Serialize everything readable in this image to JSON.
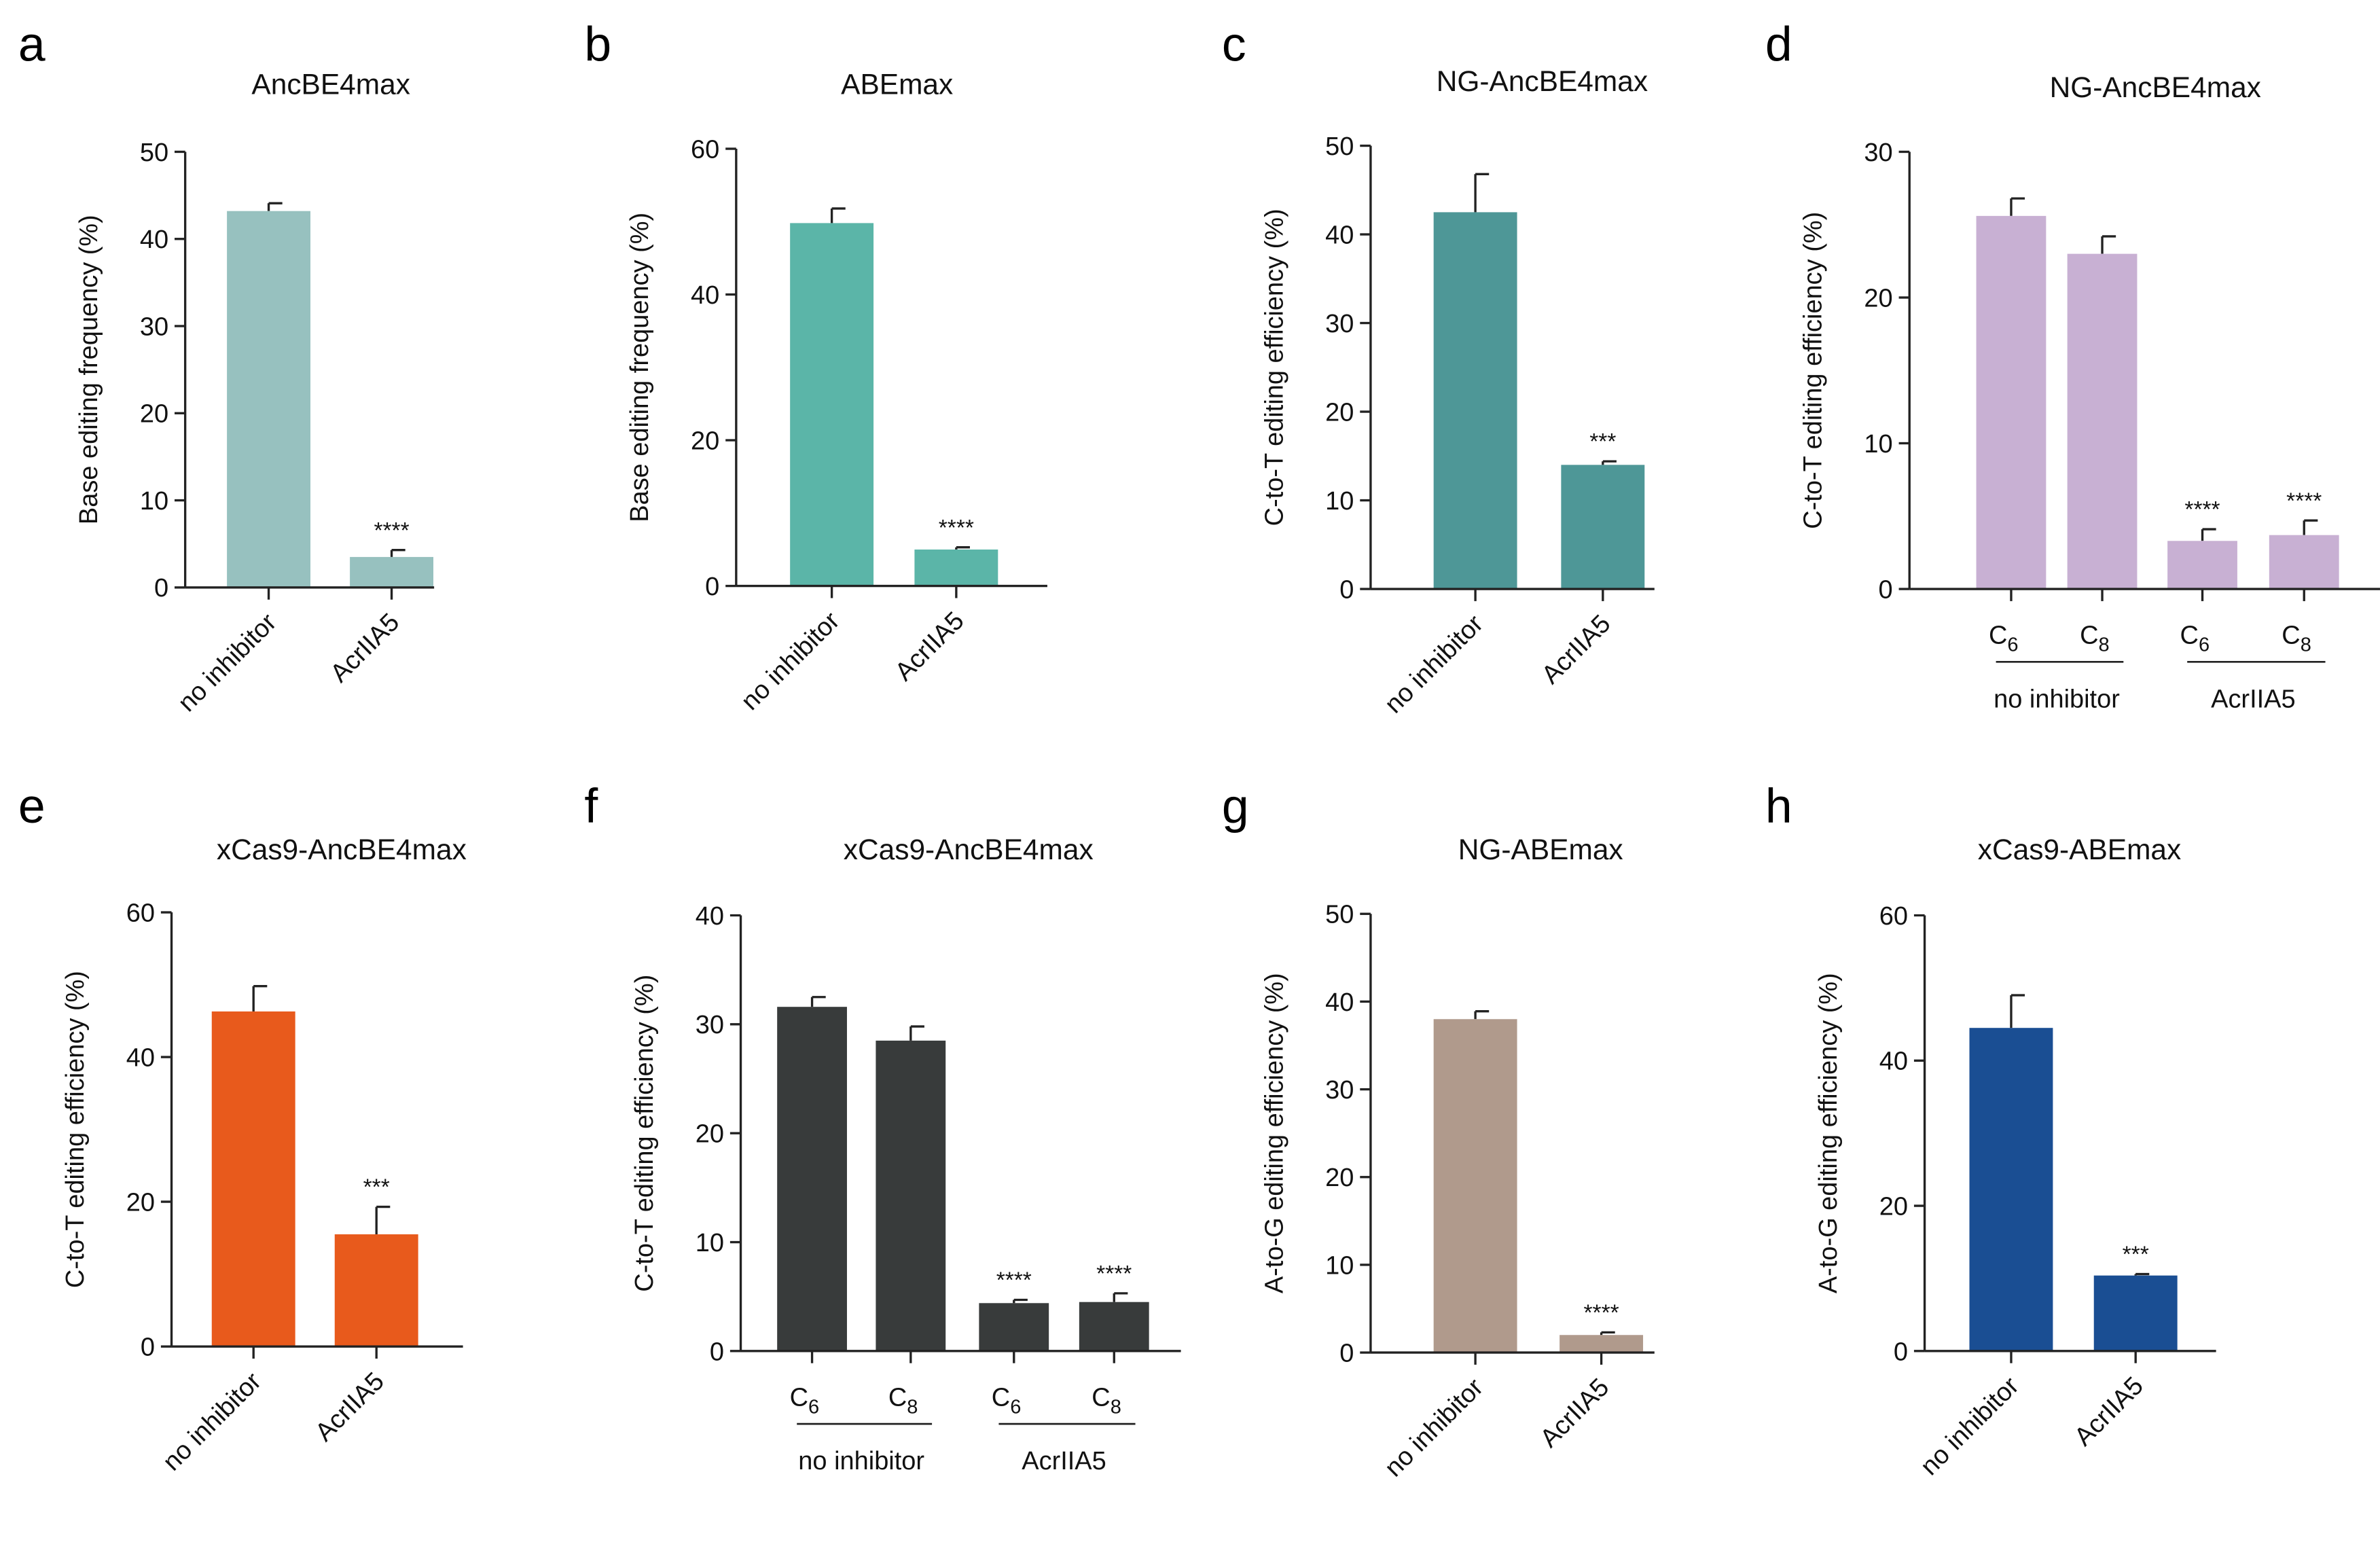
{
  "chart_data": [
    {
      "panel": "a",
      "type": "bar",
      "title": "AncBE4max",
      "ylabel": "Base editing frequency (%)",
      "ylim": [
        0,
        50
      ],
      "yticks": [
        0,
        10,
        20,
        30,
        40,
        50
      ],
      "categories": [
        "no inhibitor",
        "AcrIIA5"
      ],
      "values": [
        43.2,
        3.5
      ],
      "errors": [
        0.9,
        0.8
      ],
      "significance": [
        "",
        "****"
      ],
      "color": "#97c1bf",
      "category_style": "rotated"
    },
    {
      "panel": "b",
      "type": "bar",
      "title": "ABEmax",
      "ylabel": "Base editing frequency (%)",
      "ylim": [
        0,
        60
      ],
      "yticks": [
        0,
        20,
        40,
        60
      ],
      "categories": [
        "no inhibitor",
        "AcrIIA5"
      ],
      "values": [
        49.8,
        5.0
      ],
      "errors": [
        2.0,
        0.3
      ],
      "significance": [
        "",
        "****"
      ],
      "color": "#5bb5a8",
      "category_style": "rotated"
    },
    {
      "panel": "c",
      "type": "bar",
      "title": "NG-AncBE4max",
      "ylabel": "C-to-T editing efficiency (%)",
      "ylim": [
        0,
        50
      ],
      "yticks": [
        0,
        10,
        20,
        30,
        40,
        50
      ],
      "categories": [
        "no inhibitor",
        "AcrIIA5"
      ],
      "values": [
        42.5,
        14.0
      ],
      "errors": [
        4.3,
        0.4
      ],
      "significance": [
        "",
        "***"
      ],
      "color": "#4e9797",
      "category_style": "rotated"
    },
    {
      "panel": "d",
      "type": "bar",
      "title": "NG-AncBE4max",
      "ylabel": "C-to-T editing efficiency (%)",
      "ylim": [
        0,
        30
      ],
      "yticks": [
        0,
        10,
        20,
        30
      ],
      "categories": [
        "C",
        "C",
        "C",
        "C"
      ],
      "subscripts": [
        "6",
        "8",
        "6",
        "8"
      ],
      "groups": [
        "no inhibitor",
        "AcrIIA5"
      ],
      "values": [
        25.6,
        23.0,
        3.3,
        3.7
      ],
      "errors": [
        1.2,
        1.2,
        0.8,
        1.0
      ],
      "significance": [
        "",
        "",
        "****",
        "****"
      ],
      "color": "#c8b0d3",
      "category_style": "grouped"
    },
    {
      "panel": "e",
      "type": "bar",
      "title": "xCas9-AncBE4max",
      "ylabel": "C-to-T editing efficiency (%)",
      "ylim": [
        0,
        60
      ],
      "yticks": [
        0,
        20,
        40,
        60
      ],
      "categories": [
        "no inhibitor",
        "AcrIIA5"
      ],
      "values": [
        46.3,
        15.5
      ],
      "errors": [
        3.5,
        3.8
      ],
      "significance": [
        "",
        "***"
      ],
      "color": "#e85a1c",
      "category_style": "rotated"
    },
    {
      "panel": "f",
      "type": "bar",
      "title": "xCas9-AncBE4max",
      "ylabel": "C-to-T editing efficiency (%)",
      "ylim": [
        0,
        40
      ],
      "yticks": [
        0,
        10,
        20,
        30,
        40
      ],
      "categories": [
        "C",
        "C",
        "C",
        "C"
      ],
      "subscripts": [
        "6",
        "8",
        "6",
        "8"
      ],
      "groups": [
        "no inhibitor",
        "AcrIIA5"
      ],
      "values": [
        31.6,
        28.5,
        4.4,
        4.5
      ],
      "errors": [
        0.9,
        1.3,
        0.3,
        0.8
      ],
      "significance": [
        "",
        "",
        "****",
        "****"
      ],
      "color": "#383b3b",
      "category_style": "grouped"
    },
    {
      "panel": "g",
      "type": "bar",
      "title": "NG-ABEmax",
      "ylabel": "A-to-G editing efficiency (%)",
      "ylim": [
        0,
        50
      ],
      "yticks": [
        0,
        10,
        20,
        30,
        40,
        50
      ],
      "categories": [
        "no inhibitor",
        "AcrIIA5"
      ],
      "values": [
        38.0,
        2.0
      ],
      "errors": [
        0.9,
        0.3
      ],
      "significance": [
        "",
        "****"
      ],
      "color": "#b09a8c",
      "category_style": "rotated"
    },
    {
      "panel": "h",
      "type": "bar",
      "title": "xCas9-ABEmax",
      "ylabel": "A-to-G editing efficiency (%)",
      "ylim": [
        0,
        60
      ],
      "yticks": [
        0,
        20,
        40,
        60
      ],
      "categories": [
        "no inhibitor",
        "AcrIIA5"
      ],
      "values": [
        44.5,
        10.4
      ],
      "errors": [
        4.5,
        0.2
      ],
      "significance": [
        "",
        "***"
      ],
      "color": "#1a4e93",
      "category_style": "rotated"
    }
  ]
}
